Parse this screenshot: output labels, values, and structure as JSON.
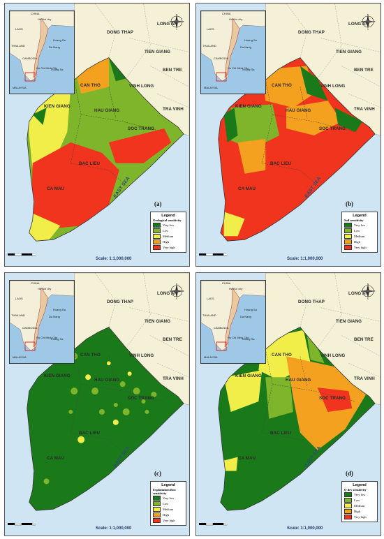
{
  "colors": {
    "very_low": "#1a7a1a",
    "low": "#7fb52a",
    "medium": "#f1ee4a",
    "high": "#f4a11f",
    "very_high": "#f0341e",
    "land_outside": "#f4f1d6",
    "sea": "#cfe5f3"
  },
  "common": {
    "scale_text": "Scale: 1:1,000,000",
    "scale_numbers": "0 5 10 20 30 40 50",
    "scale_unit": "Km",
    "sea_label": "EAST SEA",
    "compass": {
      "n": "N",
      "s": "S",
      "e": "E",
      "w": "W"
    },
    "provinces_outside": [
      "LONG AN",
      "DONG THAP",
      "TIEN GIANG",
      "BEN TRE",
      "VINH LONG",
      "TRA VINH"
    ],
    "provinces_inside": [
      "CAN THO",
      "KIEN GIANG",
      "HAU GIANG",
      "SOC TRANG",
      "BAC LIEU",
      "CA MAU"
    ],
    "inset_labels": [
      "CHINA",
      "LAOS",
      "THAILAND",
      "CAMBODIA",
      "MALAYSIA",
      "Ha Noi city",
      "Da Nang",
      "Ho Chi Minh City",
      "Hoang Sa",
      "Truong Sa"
    ]
  },
  "legend_levels": [
    "Very low",
    "Low",
    "Medium",
    "High",
    "Very high"
  ],
  "legend_title": "Legend",
  "panels": [
    {
      "tag": "(a)",
      "subtitle": "Geological sensitivity",
      "pattern": "a"
    },
    {
      "tag": "(b)",
      "subtitle": "Soil sensitivity",
      "pattern": "b"
    },
    {
      "tag": "(c)",
      "subtitle": "Exploitation flow sensitivity",
      "pattern": "c"
    },
    {
      "tag": "(d)",
      "subtitle": "Q dry sensitivity",
      "pattern": "d"
    }
  ]
}
